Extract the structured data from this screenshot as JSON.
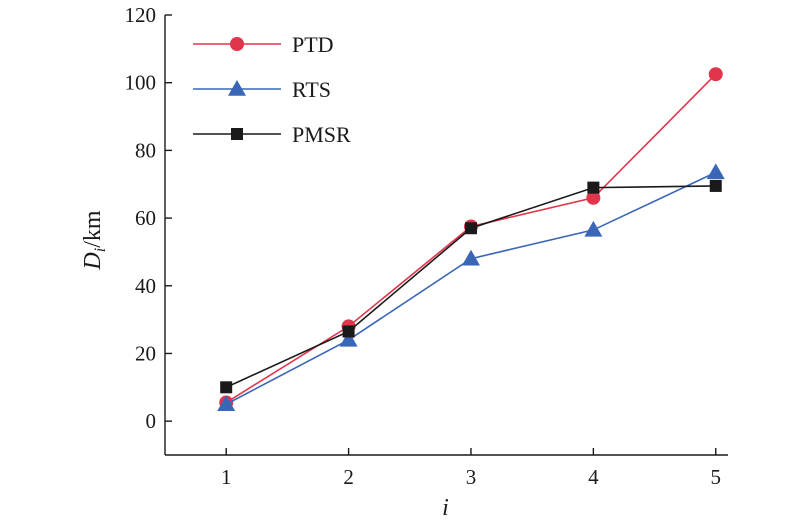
{
  "chart_data": {
    "type": "line",
    "title": "",
    "xlabel": "i",
    "ylabel_main": "D",
    "ylabel_sub": "i",
    "ylabel_unit": "/km",
    "x": [
      1,
      2,
      3,
      4,
      5
    ],
    "x_ticks": [
      "1",
      "2",
      "3",
      "4",
      "5"
    ],
    "xlim": [
      0.5,
      5.1
    ],
    "y_ticks": [
      "0",
      "20",
      "40",
      "60",
      "80",
      "100",
      "120"
    ],
    "ylim": [
      -10,
      120
    ],
    "grid": false,
    "legend_position": "top-left",
    "series": [
      {
        "name": "PTD",
        "values": [
          5.5,
          28,
          57.5,
          66,
          102.5
        ],
        "color": "#e0354b",
        "marker": "circle"
      },
      {
        "name": "RTS",
        "values": [
          5,
          24,
          48,
          56.5,
          73.5
        ],
        "color": "#3a66b8",
        "marker": "triangle"
      },
      {
        "name": "PMSR",
        "values": [
          10,
          26.5,
          57,
          69,
          69.5
        ],
        "color": "#1a1a1a",
        "marker": "square"
      }
    ]
  }
}
